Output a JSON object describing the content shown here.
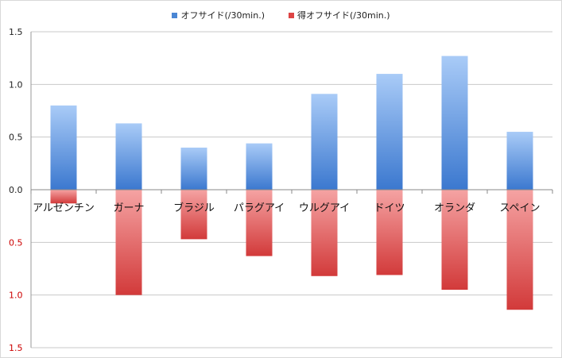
{
  "chart_data": {
    "type": "bar",
    "categories": [
      "アルゼンチン",
      "ガーナ",
      "ブラジル",
      "パラグアイ",
      "ウルグアイ",
      "ドイツ",
      "オランダ",
      "スペイン"
    ],
    "series": [
      {
        "name": "オフサイド(/30min.)",
        "values": [
          0.8,
          0.63,
          0.4,
          0.44,
          0.91,
          1.1,
          1.27,
          0.55
        ],
        "color": "#4a86d4",
        "direction": "up"
      },
      {
        "name": "得オフサイド(/30min.)",
        "values": [
          0.13,
          1.0,
          0.47,
          0.63,
          0.82,
          0.81,
          0.95,
          1.14
        ],
        "color": "#dd4444",
        "direction": "down"
      }
    ],
    "ylim": [
      -1.5,
      1.5
    ],
    "yticks": [
      {
        "value": 1.5,
        "label": "1.5"
      },
      {
        "value": 1.0,
        "label": "1.0"
      },
      {
        "value": 0.5,
        "label": "0.5"
      },
      {
        "value": 0.0,
        "label": "0.0"
      },
      {
        "value": -0.5,
        "label": "0.5"
      },
      {
        "value": -1.0,
        "label": "1.0"
      },
      {
        "value": -1.5,
        "label": "1.5"
      }
    ],
    "grid": true,
    "legend_position": "top-center",
    "colors": {
      "blue_light": "#a9cbf7",
      "blue_dark": "#3b78cf",
      "red_light": "#f5a3a3",
      "red_dark": "#d23a3a",
      "grid": "#c8c8c8",
      "negative_tick": "#cc0000"
    }
  }
}
